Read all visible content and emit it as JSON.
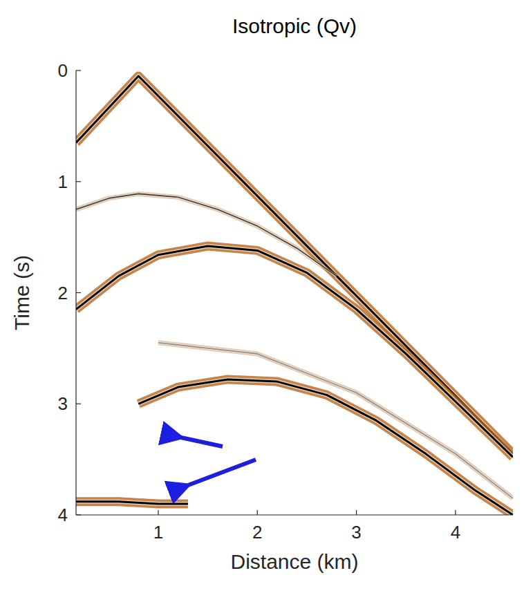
{
  "chart_data": {
    "type": "line",
    "title": "Isotropic (Qv)",
    "x_label": "Distance (km)",
    "y_label": "Time (s)",
    "xlim": [
      0.17,
      4.58
    ],
    "ylim": [
      4,
      0
    ],
    "xticks": [
      1,
      2,
      3,
      4
    ],
    "yticks": [
      0,
      1,
      2,
      3,
      4
    ],
    "grid": false,
    "series": [
      {
        "color": "#000000",
        "x": [
          0.17,
          0.8,
          4.58
        ],
        "values": [
          0.65,
          0.05,
          3.45
        ]
      },
      {
        "color": "#3a3a3a",
        "x": [
          0.17,
          0.5,
          0.8,
          1.2,
          1.6,
          2.0,
          2.4,
          2.8
        ],
        "values": [
          1.25,
          1.15,
          1.11,
          1.14,
          1.25,
          1.4,
          1.6,
          1.85
        ]
      },
      {
        "color": "#000000",
        "x": [
          0.17,
          0.6,
          1.0,
          1.5,
          2.0,
          2.5,
          3.0,
          3.5,
          4.0,
          4.58
        ],
        "values": [
          2.15,
          1.85,
          1.66,
          1.58,
          1.62,
          1.82,
          2.15,
          2.55,
          2.98,
          3.48
        ]
      },
      {
        "color": "#000000",
        "x": [
          0.8,
          1.2,
          1.7,
          2.2,
          2.7,
          3.2,
          3.7,
          4.2,
          4.58
        ],
        "values": [
          3.0,
          2.85,
          2.78,
          2.8,
          2.92,
          3.15,
          3.45,
          3.78,
          4.0
        ]
      },
      {
        "color": "#8a8a8a",
        "x": [
          1.0,
          2.0,
          3.0,
          4.0,
          4.58
        ],
        "values": [
          2.45,
          2.55,
          2.9,
          3.45,
          3.85
        ]
      },
      {
        "color": "#000000",
        "x": [
          0.17,
          0.6,
          1.0,
          1.3
        ],
        "values": [
          3.88,
          3.88,
          3.9,
          3.9
        ]
      }
    ]
  }
}
